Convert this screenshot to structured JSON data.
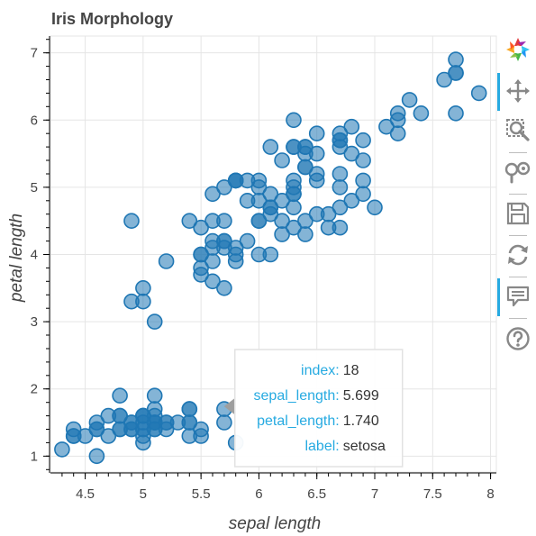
{
  "toolbar": {
    "tools": [
      {
        "name": "logo-icon"
      },
      {
        "name": "pan-tool-icon",
        "active": true
      },
      {
        "name": "box-zoom-tool-icon",
        "active": false
      },
      {
        "name": "wheel-zoom-tool-icon",
        "active": false
      },
      {
        "name": "save-tool-icon",
        "active": false
      },
      {
        "name": "reset-tool-icon",
        "active": false
      },
      {
        "name": "hover-tool-icon",
        "active": true
      },
      {
        "name": "help-icon",
        "active": false
      }
    ]
  },
  "chart_data": {
    "type": "scatter",
    "title": "Iris Morphology",
    "xlabel": "sepal length",
    "ylabel": "petal length",
    "xlim": [
      4.2,
      8.05
    ],
    "ylim": [
      0.75,
      7.25
    ],
    "xticks": [
      "4.5",
      "5",
      "5.5",
      "6",
      "6.5",
      "7",
      "7.5",
      "8"
    ],
    "yticks": [
      "1",
      "2",
      "3",
      "4",
      "5",
      "6",
      "7"
    ],
    "grid": true,
    "marker_color": "#1f77b4",
    "x": [
      5.1,
      4.9,
      4.7,
      4.6,
      5.0,
      5.4,
      4.6,
      5.0,
      4.4,
      4.9,
      5.4,
      4.8,
      4.8,
      4.3,
      5.8,
      5.7,
      5.4,
      5.1,
      5.7,
      5.1,
      5.4,
      5.1,
      4.6,
      5.1,
      4.8,
      5.0,
      5.0,
      5.2,
      5.2,
      4.7,
      4.8,
      5.4,
      5.2,
      5.5,
      4.9,
      5.0,
      5.5,
      4.9,
      4.4,
      5.1,
      5.0,
      4.5,
      4.4,
      5.0,
      5.1,
      4.8,
      5.1,
      4.6,
      5.3,
      5.0,
      7.0,
      6.4,
      6.9,
      5.5,
      6.5,
      5.7,
      6.3,
      4.9,
      6.6,
      5.2,
      5.0,
      5.9,
      6.0,
      6.1,
      5.6,
      6.7,
      5.6,
      5.8,
      6.2,
      5.6,
      5.9,
      6.1,
      6.3,
      6.1,
      6.4,
      6.6,
      6.8,
      6.7,
      6.0,
      5.7,
      5.5,
      5.5,
      5.8,
      6.0,
      5.4,
      6.0,
      6.7,
      6.3,
      5.6,
      5.5,
      5.5,
      6.1,
      5.8,
      5.0,
      5.6,
      5.7,
      5.7,
      6.2,
      5.1,
      5.7,
      6.3,
      5.8,
      7.1,
      6.3,
      6.5,
      7.6,
      4.9,
      7.3,
      6.7,
      7.2,
      6.5,
      6.4,
      6.8,
      5.7,
      5.8,
      6.4,
      6.5,
      7.7,
      7.7,
      6.0,
      6.9,
      5.6,
      7.7,
      6.3,
      6.7,
      7.2,
      6.2,
      6.1,
      6.4,
      7.2,
      7.4,
      7.9,
      6.4,
      6.3,
      6.1,
      7.7,
      6.3,
      6.4,
      6.0,
      6.9,
      6.7,
      6.9,
      5.8,
      6.8,
      6.7,
      6.7,
      6.3,
      6.5,
      6.2,
      5.9
    ],
    "y": [
      1.4,
      1.4,
      1.3,
      1.5,
      1.4,
      1.7,
      1.4,
      1.5,
      1.4,
      1.5,
      1.5,
      1.6,
      1.4,
      1.1,
      1.2,
      1.5,
      1.3,
      1.4,
      1.7,
      1.5,
      1.7,
      1.5,
      1.0,
      1.7,
      1.9,
      1.6,
      1.6,
      1.5,
      1.4,
      1.6,
      1.6,
      1.5,
      1.5,
      1.4,
      1.5,
      1.2,
      1.3,
      1.4,
      1.3,
      1.5,
      1.3,
      1.3,
      1.3,
      1.6,
      1.9,
      1.4,
      1.6,
      1.4,
      1.5,
      1.4,
      4.7,
      4.5,
      4.9,
      4.0,
      4.6,
      4.5,
      4.7,
      3.3,
      4.6,
      3.9,
      3.5,
      4.2,
      4.0,
      4.7,
      3.6,
      4.4,
      4.5,
      4.1,
      4.5,
      3.9,
      4.8,
      4.0,
      4.9,
      4.7,
      4.3,
      4.4,
      4.8,
      5.0,
      4.5,
      3.5,
      3.8,
      3.7,
      3.9,
      5.1,
      4.5,
      4.5,
      4.7,
      4.4,
      4.1,
      4.0,
      4.4,
      4.6,
      4.0,
      3.3,
      4.2,
      4.2,
      4.2,
      4.3,
      3.0,
      4.1,
      6.0,
      5.1,
      5.9,
      5.6,
      5.8,
      6.6,
      4.5,
      6.3,
      5.8,
      6.1,
      5.1,
      5.3,
      5.5,
      5.0,
      5.1,
      5.3,
      5.5,
      6.7,
      6.9,
      5.0,
      5.7,
      4.9,
      6.7,
      4.9,
      5.7,
      6.0,
      4.8,
      4.9,
      5.6,
      5.8,
      6.1,
      6.4,
      5.6,
      5.1,
      5.6,
      6.1,
      5.6,
      5.5,
      4.8,
      5.4,
      5.6,
      5.1,
      5.1,
      5.9,
      5.7,
      5.2,
      5.0,
      5.2,
      5.4,
      5.1
    ],
    "tooltip": {
      "anchor": {
        "x": 5.699,
        "y": 1.74
      },
      "rows": [
        {
          "key": "index:",
          "value": "18"
        },
        {
          "key": "sepal_length:",
          "value": "5.699"
        },
        {
          "key": "petal_length:",
          "value": "1.740"
        },
        {
          "key": "label:",
          "value": "setosa"
        }
      ]
    }
  }
}
